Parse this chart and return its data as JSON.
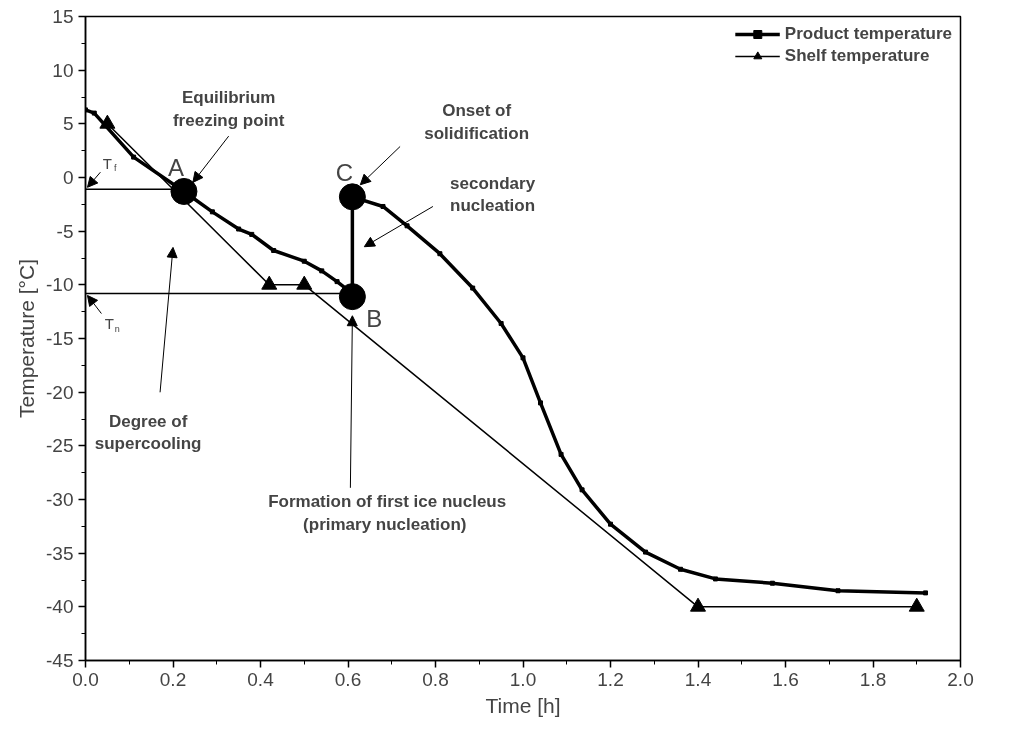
{
  "chart_data": {
    "type": "line",
    "xlabel": "Time [h]",
    "ylabel": "Temperature [°C]",
    "xlim": [
      0,
      2
    ],
    "ylim": [
      -45,
      15
    ],
    "xticks": [
      {
        "value": 0,
        "label": "0.0"
      },
      0.2,
      0.4,
      0.6,
      0.8,
      {
        "value": 1,
        "label": "1.0"
      },
      1.2,
      1.4,
      1.6,
      1.8,
      {
        "value": 2,
        "label": "2.0"
      }
    ],
    "yticks": [
      -45,
      -40,
      -35,
      -30,
      -25,
      -20,
      -15,
      -10,
      -5,
      0,
      5,
      10,
      15
    ],
    "grid": false,
    "legend": "top right",
    "series": [
      {
        "name": "Product temperature",
        "color": "#000000",
        "marker": "square",
        "x": [
          0,
          0.02,
          0.11,
          0.225,
          0.29,
          0.35,
          0.38,
          0.43,
          0.5,
          0.54,
          0.575,
          0.6,
          0.61,
          0.61,
          0.68,
          0.735,
          0.81,
          0.885,
          0.95,
          1.0,
          1.04,
          1.087,
          1.135,
          1.2,
          1.28,
          1.36,
          1.44,
          1.57,
          1.72,
          1.92
        ],
        "values": [
          6.3,
          6.0,
          1.9,
          -1.3,
          -3.2,
          -4.8,
          -5.3,
          -6.8,
          -7.8,
          -8.7,
          -9.7,
          -10.5,
          -11.1,
          -1.8,
          -2.7,
          -4.5,
          -7.1,
          -10.3,
          -13.6,
          -16.8,
          -21,
          -25.8,
          -29.1,
          -32.3,
          -34.9,
          -36.5,
          -37.4,
          -37.8,
          -38.5,
          -38.7
        ]
      },
      {
        "name": "Shelf temperature",
        "color": "#000000",
        "marker": "triangle",
        "x": [
          0.05,
          0.42,
          0.5,
          1.4,
          1.9
        ],
        "values": [
          5,
          -10,
          -10,
          -40,
          -40
        ]
      },
      {
        "color": "#000000",
        "type": "scatter",
        "marker": "circle",
        "x": [
          0.225,
          0.61,
          0.61
        ],
        "values": [
          -1.3,
          -11.1,
          -1.8
        ]
      },
      {
        "color": "#000000",
        "marker": "none",
        "x": [
          0,
          0.225
        ],
        "values": [
          -1.1,
          -1.1
        ]
      },
      {
        "color": "#000000",
        "marker": "none",
        "x": [
          0,
          0.61
        ],
        "values": [
          -10.8,
          -10.8
        ]
      }
    ],
    "annotations": [
      {
        "text": "A",
        "x": 0.225,
        "y": -1.3
      },
      {
        "text": "B",
        "x": 0.61,
        "y": -11.1
      },
      {
        "text": "C",
        "x": 0.61,
        "y": -1.8
      },
      "Equilibrium\nfreezing point",
      "Onset of\nsolidification",
      "secondary\nnucleation",
      "Degree of\nsupercooling",
      "Formation of first ice nucleus\n (primary nucleation)",
      {
        "text": "T$_{f}$",
        "x": 0,
        "y": -1.1
      },
      {
        "text": "T$_{n}$",
        "x": 0,
        "y": -10.8
      }
    ]
  }
}
